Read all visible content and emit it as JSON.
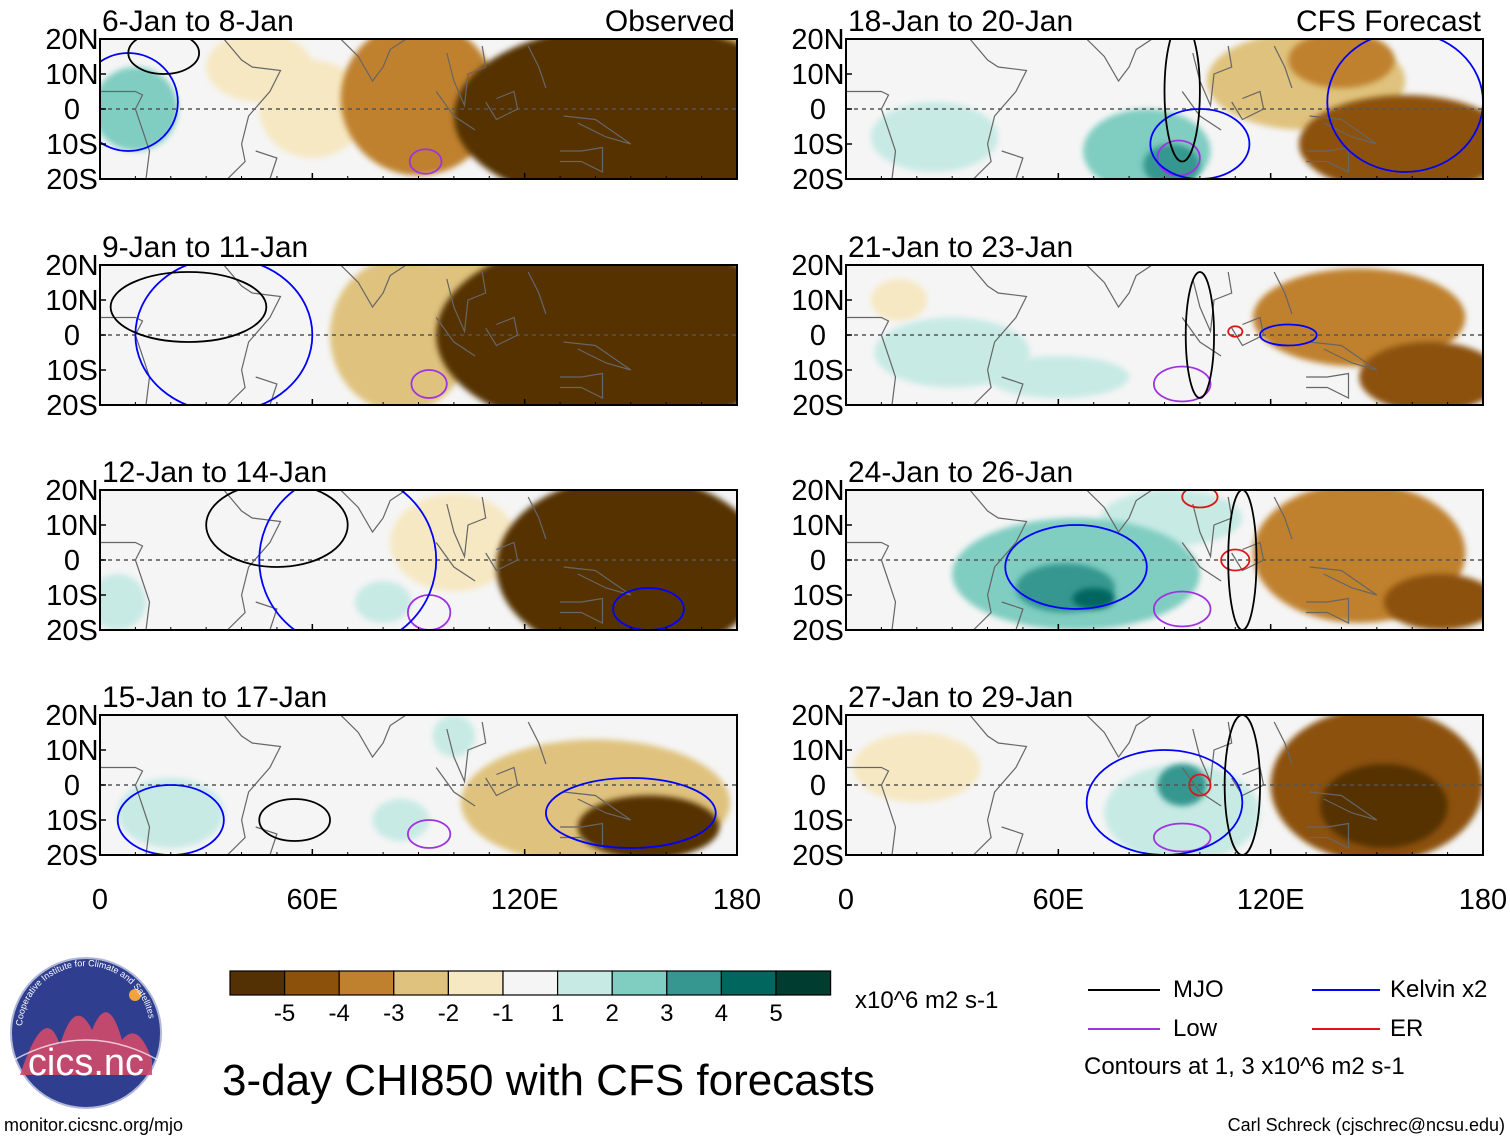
{
  "chart_data": {
    "type": "heatmap",
    "title": "3-day CHI850 with CFS forecasts",
    "variable": "CHI850",
    "units": "x10^6 m2 s-1",
    "xlim": [
      0,
      180
    ],
    "ylim": [
      -20,
      20
    ],
    "x_ticks": [
      {
        "value": 0,
        "label": "0"
      },
      {
        "value": 60,
        "label": "60E"
      },
      {
        "value": 120,
        "label": "120E"
      },
      {
        "value": 180,
        "label": "180"
      }
    ],
    "y_ticks": [
      {
        "value": 20,
        "label": "20N"
      },
      {
        "value": 10,
        "label": "10N"
      },
      {
        "value": 0,
        "label": "0"
      },
      {
        "value": -10,
        "label": "10S"
      },
      {
        "value": -20,
        "label": "20S"
      }
    ],
    "colorbar": {
      "labels": [
        "-5",
        "-4",
        "-3",
        "-2",
        "-1",
        "1",
        "2",
        "3",
        "4",
        "5"
      ],
      "levels": [
        -5,
        -4,
        -3,
        -2,
        -1,
        1,
        2,
        3,
        4,
        5
      ],
      "colors": [
        "#543005",
        "#8c510a",
        "#bf812d",
        "#dfc27d",
        "#f6e8c3",
        "#f5f5f5",
        "#c7eae5",
        "#80cdc1",
        "#35978f",
        "#01665e",
        "#003c30"
      ],
      "units": "x10^6 m2 s-1"
    },
    "legend": {
      "items": [
        {
          "label": "MJO",
          "color": "#000000"
        },
        {
          "label": "Kelvin x2",
          "color": "#0000ff"
        },
        {
          "label": "Low",
          "color": "#a033e0"
        },
        {
          "label": "ER",
          "color": "#e01414"
        }
      ],
      "note": "Contours at 1, 3 x10^6 m2 s-1"
    },
    "panels": [
      {
        "title": "6-Jan to 8-Jan",
        "tag": "Observed",
        "blobs": [
          {
            "lon": 10,
            "lat": 0,
            "rx": 12,
            "ry": 12,
            "v": 2.5
          },
          {
            "lon": 45,
            "lat": 12,
            "rx": 15,
            "ry": 10,
            "v": -1.2
          },
          {
            "lon": 60,
            "lat": 0,
            "rx": 15,
            "ry": 14,
            "v": -1.4
          },
          {
            "lon": 90,
            "lat": 3,
            "rx": 22,
            "ry": 22,
            "v": -3.5
          },
          {
            "lon": 150,
            "lat": -2,
            "rx": 50,
            "ry": 26,
            "v": -5.5
          },
          {
            "lon": 175,
            "lat": 5,
            "rx": 22,
            "ry": 20,
            "v": -3.0
          }
        ],
        "contours": [
          {
            "type": "Low",
            "lon": 92,
            "lat": -15,
            "rx": 4.5,
            "ry": 3.5
          },
          {
            "type": "Kelvin",
            "lon": 8,
            "lat": 2,
            "rx": 14,
            "ry": 14
          },
          {
            "type": "MJO",
            "lon": 18,
            "lat": 16,
            "rx": 10,
            "ry": 6
          }
        ]
      },
      {
        "title": "18-Jan to 20-Jan",
        "tag": "CFS Forecast",
        "blobs": [
          {
            "lon": 25,
            "lat": -8,
            "rx": 18,
            "ry": 10,
            "v": 1.6
          },
          {
            "lon": 85,
            "lat": -12,
            "rx": 18,
            "ry": 12,
            "v": 2.2
          },
          {
            "lon": 92,
            "lat": -16,
            "rx": 8,
            "ry": 6,
            "v": 3.5
          },
          {
            "lon": 130,
            "lat": 8,
            "rx": 28,
            "ry": 14,
            "v": -2.5
          },
          {
            "lon": 158,
            "lat": -10,
            "rx": 30,
            "ry": 14,
            "v": -4.5
          },
          {
            "lon": 140,
            "lat": 14,
            "rx": 15,
            "ry": 8,
            "v": -3.5
          }
        ],
        "contours": [
          {
            "type": "Low",
            "lon": 94,
            "lat": -14,
            "rx": 6,
            "ry": 5
          },
          {
            "type": "Kelvin",
            "lon": 100,
            "lat": -10,
            "rx": 14,
            "ry": 10
          },
          {
            "type": "Kelvin",
            "lon": 158,
            "lat": 2,
            "rx": 22,
            "ry": 20
          },
          {
            "type": "MJO",
            "lon": 95,
            "lat": 5,
            "rx": 5,
            "ry": 20
          }
        ]
      },
      {
        "title": "9-Jan to 11-Jan",
        "tag": "",
        "blobs": [
          {
            "lon": 85,
            "lat": 0,
            "rx": 20,
            "ry": 22,
            "v": -2.5
          },
          {
            "lon": 145,
            "lat": 0,
            "rx": 50,
            "ry": 28,
            "v": -5.5
          },
          {
            "lon": 105,
            "lat": 10,
            "rx": 20,
            "ry": 12,
            "v": -3.0
          }
        ],
        "contours": [
          {
            "type": "Low",
            "lon": 93,
            "lat": -14,
            "rx": 5,
            "ry": 4
          },
          {
            "type": "Kelvin",
            "lon": 35,
            "lat": 0,
            "rx": 25,
            "ry": 22
          },
          {
            "type": "MJO",
            "lon": 25,
            "lat": 8,
            "rx": 22,
            "ry": 10
          }
        ]
      },
      {
        "title": "21-Jan to 23-Jan",
        "tag": "",
        "blobs": [
          {
            "lon": 30,
            "lat": -5,
            "rx": 22,
            "ry": 10,
            "v": 1.5
          },
          {
            "lon": 60,
            "lat": -12,
            "rx": 20,
            "ry": 6,
            "v": 1.2
          },
          {
            "lon": 145,
            "lat": 5,
            "rx": 30,
            "ry": 14,
            "v": -3.5
          },
          {
            "lon": 165,
            "lat": -12,
            "rx": 20,
            "ry": 10,
            "v": -4.5
          },
          {
            "lon": 15,
            "lat": 10,
            "rx": 8,
            "ry": 6,
            "v": -1.2
          }
        ],
        "contours": [
          {
            "type": "Low",
            "lon": 95,
            "lat": -14,
            "rx": 8,
            "ry": 5
          },
          {
            "type": "ER",
            "lon": 110,
            "lat": 1,
            "rx": 2,
            "ry": 1.5
          },
          {
            "type": "Kelvin",
            "lon": 125,
            "lat": 0,
            "rx": 8,
            "ry": 3
          },
          {
            "type": "MJO",
            "lon": 100,
            "lat": 0,
            "rx": 4,
            "ry": 18
          }
        ]
      },
      {
        "title": "12-Jan to 14-Jan",
        "tag": "",
        "blobs": [
          {
            "lon": 100,
            "lat": 5,
            "rx": 18,
            "ry": 14,
            "v": -1.5
          },
          {
            "lon": 150,
            "lat": -2,
            "rx": 38,
            "ry": 26,
            "v": -5.5
          },
          {
            "lon": 5,
            "lat": -12,
            "rx": 8,
            "ry": 8,
            "v": 1.5
          },
          {
            "lon": 80,
            "lat": -12,
            "rx": 8,
            "ry": 6,
            "v": 1.3
          }
        ],
        "contours": [
          {
            "type": "Low",
            "lon": 93,
            "lat": -15,
            "rx": 6,
            "ry": 5
          },
          {
            "type": "Kelvin",
            "lon": 155,
            "lat": -14,
            "rx": 10,
            "ry": 6
          },
          {
            "type": "Kelvin",
            "lon": 70,
            "lat": 0,
            "rx": 25,
            "ry": 25
          },
          {
            "type": "MJO",
            "lon": 50,
            "lat": 10,
            "rx": 20,
            "ry": 12
          }
        ]
      },
      {
        "title": "24-Jan to 26-Jan",
        "tag": "",
        "blobs": [
          {
            "lon": 65,
            "lat": -4,
            "rx": 35,
            "ry": 16,
            "v": 2.2
          },
          {
            "lon": 62,
            "lat": -8,
            "rx": 14,
            "ry": 7,
            "v": 3.5
          },
          {
            "lon": 70,
            "lat": -11,
            "rx": 6,
            "ry": 3,
            "v": 4.5
          },
          {
            "lon": 92,
            "lat": 12,
            "rx": 20,
            "ry": 8,
            "v": 1.5
          },
          {
            "lon": 145,
            "lat": 2,
            "rx": 30,
            "ry": 20,
            "v": -4.0
          },
          {
            "lon": 168,
            "lat": -12,
            "rx": 16,
            "ry": 8,
            "v": -4.5
          }
        ],
        "contours": [
          {
            "type": "Low",
            "lon": 95,
            "lat": -14,
            "rx": 8,
            "ry": 5
          },
          {
            "type": "ER",
            "lon": 110,
            "lat": 0,
            "rx": 4,
            "ry": 3
          },
          {
            "type": "ER",
            "lon": 100,
            "lat": 18,
            "rx": 5,
            "ry": 3
          },
          {
            "type": "Kelvin",
            "lon": 65,
            "lat": -2,
            "rx": 20,
            "ry": 12
          },
          {
            "type": "MJO",
            "lon": 112,
            "lat": 0,
            "rx": 4,
            "ry": 20
          }
        ]
      },
      {
        "title": "15-Jan to 17-Jan",
        "tag": "",
        "blobs": [
          {
            "lon": 20,
            "lat": -8,
            "rx": 15,
            "ry": 10,
            "v": 1.5
          },
          {
            "lon": 85,
            "lat": -10,
            "rx": 8,
            "ry": 6,
            "v": 1.3
          },
          {
            "lon": 100,
            "lat": 14,
            "rx": 6,
            "ry": 6,
            "v": 1.2
          },
          {
            "lon": 140,
            "lat": -5,
            "rx": 38,
            "ry": 18,
            "v": -3.0
          },
          {
            "lon": 155,
            "lat": -12,
            "rx": 20,
            "ry": 9,
            "v": -5.2
          }
        ],
        "contours": [
          {
            "type": "Low",
            "lon": 93,
            "lat": -14,
            "rx": 6,
            "ry": 4
          },
          {
            "type": "Kelvin",
            "lon": 150,
            "lat": -8,
            "rx": 24,
            "ry": 10
          },
          {
            "type": "Kelvin",
            "lon": 20,
            "lat": -10,
            "rx": 15,
            "ry": 10
          },
          {
            "type": "MJO",
            "lon": 55,
            "lat": -10,
            "rx": 10,
            "ry": 6
          }
        ]
      },
      {
        "title": "27-Jan to 29-Jan",
        "tag": "",
        "blobs": [
          {
            "lon": 20,
            "lat": 5,
            "rx": 18,
            "ry": 10,
            "v": -2.0
          },
          {
            "lon": 95,
            "lat": -8,
            "rx": 22,
            "ry": 14,
            "v": 1.8
          },
          {
            "lon": 95,
            "lat": 0,
            "rx": 7,
            "ry": 6,
            "v": 3.0
          },
          {
            "lon": 150,
            "lat": 0,
            "rx": 30,
            "ry": 22,
            "v": -4.5
          },
          {
            "lon": 152,
            "lat": -6,
            "rx": 18,
            "ry": 12,
            "v": -5.2
          }
        ],
        "contours": [
          {
            "type": "Low",
            "lon": 95,
            "lat": -15,
            "rx": 8,
            "ry": 4
          },
          {
            "type": "ER",
            "lon": 100,
            "lat": 0,
            "rx": 3,
            "ry": 3
          },
          {
            "type": "Kelvin",
            "lon": 90,
            "lat": -5,
            "rx": 22,
            "ry": 15
          },
          {
            "type": "MJO",
            "lon": 112,
            "lat": 0,
            "rx": 5,
            "ry": 20
          }
        ]
      }
    ]
  },
  "page": {
    "main_title": "3-day CHI850 with CFS forecasts",
    "units_label": "x10^6 m2 s-1",
    "contour_note": "Contours at 1, 3 x10^6 m2 s-1",
    "left_credit": "monitor.cicsnc.org/mjo",
    "right_credit": "Carl Schreck (cjschrec@ncsu.edu)",
    "logo": {
      "text": "cics.nc",
      "arc_text": "Cooperative Institute for Climate and Satellites"
    }
  }
}
